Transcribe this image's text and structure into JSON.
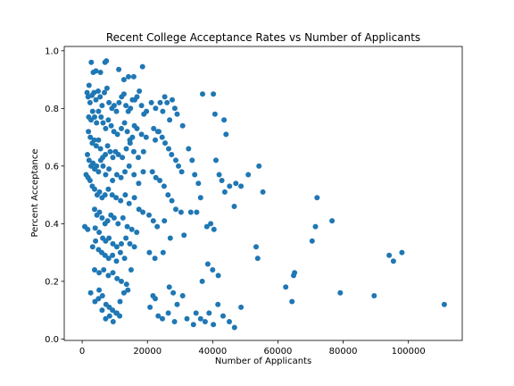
{
  "chart_data": {
    "type": "scatter",
    "title": "Recent College Acceptance Rates vs Number of Applicants",
    "xlabel": "Number of Applicants",
    "ylabel": "Percent Acceptance",
    "xlim": [
      -5500,
      116500
    ],
    "ylim": [
      -0.005,
      1.015
    ],
    "xticks": [
      0,
      20000,
      40000,
      60000,
      80000,
      100000
    ],
    "yticks": [
      0.0,
      0.2,
      0.4,
      0.6,
      0.8,
      1.0
    ],
    "xtick_labels": [
      "0",
      "20000",
      "40000",
      "60000",
      "80000",
      "100000"
    ],
    "ytick_labels": [
      "0.0",
      "0.2",
      "0.4",
      "0.6",
      "0.8",
      "1.0"
    ],
    "grid": false,
    "marker_color": "#1f77b4",
    "points": [
      [
        1500,
        0.855
      ],
      [
        2100,
        0.88
      ],
      [
        2800,
        0.96
      ],
      [
        3400,
        0.925
      ],
      [
        4200,
        0.93
      ],
      [
        5600,
        0.925
      ],
      [
        7000,
        0.96
      ],
      [
        7400,
        0.965
      ],
      [
        11200,
        0.935
      ],
      [
        12800,
        0.9
      ],
      [
        14200,
        0.91
      ],
      [
        15800,
        0.91
      ],
      [
        18500,
        0.945
      ],
      [
        1800,
        0.84
      ],
      [
        2400,
        0.82
      ],
      [
        3000,
        0.845
      ],
      [
        3600,
        0.855
      ],
      [
        4200,
        0.83
      ],
      [
        4900,
        0.86
      ],
      [
        5500,
        0.84
      ],
      [
        6100,
        0.81
      ],
      [
        6800,
        0.855
      ],
      [
        7600,
        0.87
      ],
      [
        8200,
        0.82
      ],
      [
        9100,
        0.8
      ],
      [
        9800,
        0.81
      ],
      [
        10500,
        0.79
      ],
      [
        11300,
        0.82
      ],
      [
        12100,
        0.84
      ],
      [
        12800,
        0.85
      ],
      [
        13400,
        0.81
      ],
      [
        14100,
        0.79
      ],
      [
        14800,
        0.8
      ],
      [
        15400,
        0.83
      ],
      [
        16100,
        0.83
      ],
      [
        16800,
        0.84
      ],
      [
        17500,
        0.86
      ],
      [
        18200,
        0.81
      ],
      [
        18900,
        0.78
      ],
      [
        19700,
        0.79
      ],
      [
        2000,
        0.77
      ],
      [
        2700,
        0.76
      ],
      [
        3200,
        0.79
      ],
      [
        3800,
        0.77
      ],
      [
        4400,
        0.75
      ],
      [
        5000,
        0.79
      ],
      [
        5800,
        0.77
      ],
      [
        6400,
        0.75
      ],
      [
        7200,
        0.73
      ],
      [
        8000,
        0.76
      ],
      [
        8900,
        0.74
      ],
      [
        9700,
        0.72
      ],
      [
        10800,
        0.71
      ],
      [
        12000,
        0.73
      ],
      [
        13000,
        0.75
      ],
      [
        13800,
        0.72
      ],
      [
        14600,
        0.69
      ],
      [
        15400,
        0.7
      ],
      [
        16000,
        0.74
      ],
      [
        16800,
        0.73
      ],
      [
        18200,
        0.71
      ],
      [
        19600,
        0.7
      ],
      [
        1900,
        0.72
      ],
      [
        2500,
        0.7
      ],
      [
        3100,
        0.68
      ],
      [
        3700,
        0.69
      ],
      [
        4300,
        0.67
      ],
      [
        5000,
        0.69
      ],
      [
        5600,
        0.66
      ],
      [
        6300,
        0.63
      ],
      [
        7100,
        0.64
      ],
      [
        7800,
        0.67
      ],
      [
        8600,
        0.65
      ],
      [
        9400,
        0.63
      ],
      [
        10200,
        0.65
      ],
      [
        11100,
        0.64
      ],
      [
        12300,
        0.63
      ],
      [
        13500,
        0.66
      ],
      [
        14700,
        0.68
      ],
      [
        15800,
        0.65
      ],
      [
        17200,
        0.63
      ],
      [
        18800,
        0.65
      ],
      [
        1600,
        0.64
      ],
      [
        2100,
        0.62
      ],
      [
        2700,
        0.6
      ],
      [
        3300,
        0.61
      ],
      [
        3800,
        0.59
      ],
      [
        4400,
        0.6
      ],
      [
        5000,
        0.58
      ],
      [
        5700,
        0.62
      ],
      [
        6400,
        0.6
      ],
      [
        7200,
        0.57
      ],
      [
        8200,
        0.59
      ],
      [
        9300,
        0.55
      ],
      [
        10600,
        0.57
      ],
      [
        11900,
        0.56
      ],
      [
        13100,
        0.58
      ],
      [
        14400,
        0.6
      ],
      [
        15900,
        0.57
      ],
      [
        17300,
        0.54
      ],
      [
        18700,
        0.58
      ],
      [
        1200,
        0.57
      ],
      [
        1800,
        0.56
      ],
      [
        2400,
        0.55
      ],
      [
        3100,
        0.53
      ],
      [
        3800,
        0.52
      ],
      [
        4600,
        0.5
      ],
      [
        5300,
        0.51
      ],
      [
        6100,
        0.49
      ],
      [
        7000,
        0.5
      ],
      [
        8000,
        0.52
      ],
      [
        9200,
        0.5
      ],
      [
        10400,
        0.49
      ],
      [
        11800,
        0.48
      ],
      [
        13200,
        0.5
      ],
      [
        14400,
        0.47
      ],
      [
        16000,
        0.49
      ],
      [
        17400,
        0.45
      ],
      [
        18600,
        0.44
      ],
      [
        3800,
        0.45
      ],
      [
        4500,
        0.43
      ],
      [
        5300,
        0.44
      ],
      [
        6100,
        0.42
      ],
      [
        7000,
        0.4
      ],
      [
        7800,
        0.41
      ],
      [
        8800,
        0.43
      ],
      [
        9800,
        0.42
      ],
      [
        11000,
        0.4
      ],
      [
        12500,
        0.42
      ],
      [
        13800,
        0.39
      ],
      [
        15200,
        0.38
      ],
      [
        16700,
        0.37
      ],
      [
        800,
        0.39
      ],
      [
        1700,
        0.38
      ],
      [
        4000,
        0.385
      ],
      [
        5200,
        0.37
      ],
      [
        6300,
        0.35
      ],
      [
        7200,
        0.34
      ],
      [
        8200,
        0.35
      ],
      [
        9400,
        0.33
      ],
      [
        10600,
        0.32
      ],
      [
        12000,
        0.33
      ],
      [
        13400,
        0.35
      ],
      [
        14600,
        0.33
      ],
      [
        16000,
        0.32
      ],
      [
        3200,
        0.32
      ],
      [
        4100,
        0.34
      ],
      [
        5000,
        0.31
      ],
      [
        6000,
        0.3
      ],
      [
        7000,
        0.29
      ],
      [
        8100,
        0.28
      ],
      [
        9300,
        0.29
      ],
      [
        10500,
        0.27
      ],
      [
        11700,
        0.3
      ],
      [
        13000,
        0.28
      ],
      [
        3800,
        0.24
      ],
      [
        5200,
        0.23
      ],
      [
        6600,
        0.24
      ],
      [
        8000,
        0.22
      ],
      [
        9400,
        0.23
      ],
      [
        10700,
        0.21
      ],
      [
        12000,
        0.2
      ],
      [
        13600,
        0.19
      ],
      [
        15000,
        0.24
      ],
      [
        2600,
        0.16
      ],
      [
        3900,
        0.13
      ],
      [
        5200,
        0.17
      ],
      [
        6200,
        0.15
      ],
      [
        7300,
        0.12
      ],
      [
        8300,
        0.11
      ],
      [
        9300,
        0.1
      ],
      [
        10400,
        0.09
      ],
      [
        11500,
        0.08
      ],
      [
        12800,
        0.16
      ],
      [
        14000,
        0.17
      ],
      [
        5000,
        0.14
      ],
      [
        6100,
        0.1
      ],
      [
        7200,
        0.07
      ],
      [
        8400,
        0.08
      ],
      [
        9500,
        0.06
      ],
      [
        10600,
        0.09
      ],
      [
        11600,
        0.13
      ],
      [
        21200,
        0.82
      ],
      [
        21900,
        0.73
      ],
      [
        22500,
        0.8
      ],
      [
        23200,
        0.72
      ],
      [
        23900,
        0.82
      ],
      [
        24700,
        0.79
      ],
      [
        25300,
        0.84
      ],
      [
        26000,
        0.82
      ],
      [
        26800,
        0.76
      ],
      [
        27600,
        0.83
      ],
      [
        28400,
        0.8
      ],
      [
        29100,
        0.78
      ],
      [
        22400,
        0.69
      ],
      [
        23500,
        0.72
      ],
      [
        24500,
        0.7
      ],
      [
        25400,
        0.68
      ],
      [
        26500,
        0.66
      ],
      [
        27400,
        0.64
      ],
      [
        28700,
        0.62
      ],
      [
        29500,
        0.6
      ],
      [
        30500,
        0.58
      ],
      [
        21500,
        0.58
      ],
      [
        22600,
        0.56
      ],
      [
        23800,
        0.55
      ],
      [
        25100,
        0.53
      ],
      [
        26300,
        0.5
      ],
      [
        27500,
        0.48
      ],
      [
        28700,
        0.45
      ],
      [
        30300,
        0.44
      ],
      [
        20500,
        0.43
      ],
      [
        21800,
        0.41
      ],
      [
        23000,
        0.39
      ],
      [
        25200,
        0.41
      ],
      [
        27000,
        0.35
      ],
      [
        20600,
        0.3
      ],
      [
        22300,
        0.28
      ],
      [
        24800,
        0.3
      ],
      [
        26700,
        0.18
      ],
      [
        27900,
        0.16
      ],
      [
        29100,
        0.12
      ],
      [
        30800,
        0.15
      ],
      [
        20800,
        0.11
      ],
      [
        21700,
        0.15
      ],
      [
        22400,
        0.14
      ],
      [
        23300,
        0.08
      ],
      [
        24600,
        0.07
      ],
      [
        26400,
        0.09
      ],
      [
        28300,
        0.06
      ],
      [
        30800,
        0.74
      ],
      [
        32600,
        0.66
      ],
      [
        33700,
        0.62
      ],
      [
        34500,
        0.57
      ],
      [
        35600,
        0.54
      ],
      [
        36300,
        0.49
      ],
      [
        35100,
        0.44
      ],
      [
        33300,
        0.44
      ],
      [
        31200,
        0.36
      ],
      [
        32100,
        0.07
      ],
      [
        34100,
        0.05
      ],
      [
        34900,
        0.09
      ],
      [
        36900,
        0.85
      ],
      [
        40200,
        0.85
      ],
      [
        40700,
        0.78
      ],
      [
        43500,
        0.76
      ],
      [
        44100,
        0.71
      ],
      [
        41000,
        0.62
      ],
      [
        42000,
        0.57
      ],
      [
        42800,
        0.55
      ],
      [
        43700,
        0.51
      ],
      [
        45200,
        0.53
      ],
      [
        46600,
        0.46
      ],
      [
        47100,
        0.54
      ],
      [
        48700,
        0.53
      ],
      [
        50900,
        0.57
      ],
      [
        36300,
        0.07
      ],
      [
        37700,
        0.06
      ],
      [
        38900,
        0.09
      ],
      [
        40200,
        0.05
      ],
      [
        41600,
        0.12
      ],
      [
        43200,
        0.08
      ],
      [
        45100,
        0.06
      ],
      [
        46700,
        0.04
      ],
      [
        48700,
        0.11
      ],
      [
        36800,
        0.2
      ],
      [
        38500,
        0.26
      ],
      [
        40000,
        0.24
      ],
      [
        41700,
        0.22
      ],
      [
        38200,
        0.39
      ],
      [
        39400,
        0.4
      ],
      [
        40400,
        0.38
      ],
      [
        54200,
        0.6
      ],
      [
        55400,
        0.51
      ],
      [
        53300,
        0.32
      ],
      [
        53800,
        0.28
      ],
      [
        62400,
        0.18
      ],
      [
        64300,
        0.13
      ],
      [
        64800,
        0.22
      ],
      [
        65100,
        0.23
      ],
      [
        70500,
        0.34
      ],
      [
        71500,
        0.39
      ],
      [
        72000,
        0.49
      ],
      [
        76600,
        0.41
      ],
      [
        79100,
        0.16
      ],
      [
        89500,
        0.15
      ],
      [
        94100,
        0.29
      ],
      [
        95400,
        0.27
      ],
      [
        98000,
        0.3
      ],
      [
        111000,
        0.12
      ]
    ]
  }
}
